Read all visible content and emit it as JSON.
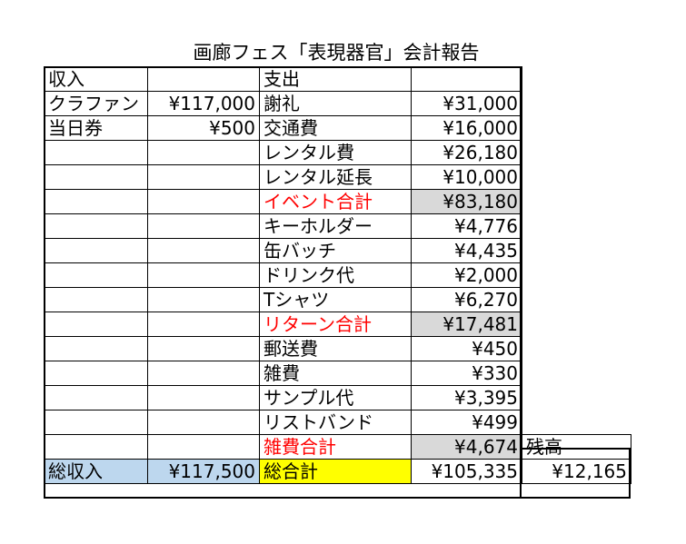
{
  "title": "画廊フェス「表現器官」会計報告",
  "header": {
    "income": "収入",
    "expense": "支出"
  },
  "rows": [
    {
      "inc_label": "クラファン",
      "inc_value": "¥117,000",
      "exp_label": "謝礼",
      "exp_value": "¥31,000"
    },
    {
      "inc_label": "当日券",
      "inc_value": "¥500",
      "exp_label": "交通費",
      "exp_value": "¥16,000"
    },
    {
      "inc_label": "",
      "inc_value": "",
      "exp_label": "レンタル費",
      "exp_value": "¥26,180"
    },
    {
      "inc_label": "",
      "inc_value": "",
      "exp_label": "レンタル延長",
      "exp_value": "¥10,000"
    },
    {
      "inc_label": "",
      "inc_value": "",
      "exp_label": "イベント合計",
      "exp_value": "¥83,180",
      "subtotal": true
    },
    {
      "inc_label": "",
      "inc_value": "",
      "exp_label": "キーホルダー",
      "exp_value": "¥4,776"
    },
    {
      "inc_label": "",
      "inc_value": "",
      "exp_label": "缶バッチ",
      "exp_value": "¥4,435"
    },
    {
      "inc_label": "",
      "inc_value": "",
      "exp_label": "ドリンク代",
      "exp_value": "¥2,000"
    },
    {
      "inc_label": "",
      "inc_value": "",
      "exp_label": "Tシャツ",
      "exp_value": "¥6,270"
    },
    {
      "inc_label": "",
      "inc_value": "",
      "exp_label": "リターン合計",
      "exp_value": "¥17,481",
      "subtotal": true
    },
    {
      "inc_label": "",
      "inc_value": "",
      "exp_label": "郵送費",
      "exp_value": "¥450"
    },
    {
      "inc_label": "",
      "inc_value": "",
      "exp_label": "雑費",
      "exp_value": "¥330"
    },
    {
      "inc_label": "",
      "inc_value": "",
      "exp_label": "サンプル代",
      "exp_value": "¥3,395"
    },
    {
      "inc_label": "",
      "inc_value": "",
      "exp_label": "リストバンド",
      "exp_value": "¥499"
    },
    {
      "inc_label": "",
      "inc_value": "",
      "exp_label": "雑費合計",
      "exp_value": "¥4,674",
      "subtotal": true
    }
  ],
  "balance_label": "残高",
  "totals": {
    "income_label": "総収入",
    "income_value": "¥117,500",
    "expense_label": "総合計",
    "expense_value": "¥105,335",
    "balance_value": "¥12,165"
  },
  "colors": {
    "subtotal_text": "#ff0000",
    "subtotal_fill": "#d9d9d9",
    "income_total_fill": "#bdd7ee",
    "expense_total_fill": "#ffff00"
  }
}
